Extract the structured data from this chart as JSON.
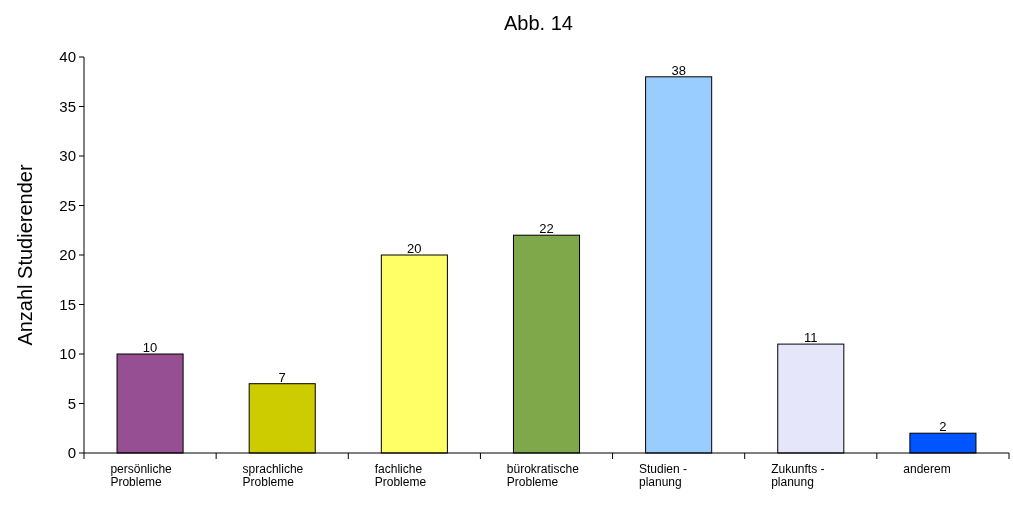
{
  "chart_data": {
    "type": "bar",
    "title": "Abb. 14",
    "ylabel": "Anzahl Studierender",
    "categories": [
      "persönliche\nProbleme",
      "sprachliche\nProbleme",
      "fachliche\nProbleme",
      "bürokratische\nProbleme",
      "Studien -\nplanung",
      "Zukunfts -\nplanung",
      "anderem"
    ],
    "values": [
      10,
      7,
      20,
      22,
      38,
      11,
      2
    ],
    "colors": [
      "#954f92",
      "#cccc00",
      "#ffff66",
      "#7ea84a",
      "#99ccff",
      "#e6e6fa",
      "#0055ff"
    ],
    "ylim": [
      0,
      40
    ],
    "yticks": [
      0,
      5,
      10,
      15,
      20,
      25,
      30,
      35,
      40
    ],
    "data_labels": true
  }
}
